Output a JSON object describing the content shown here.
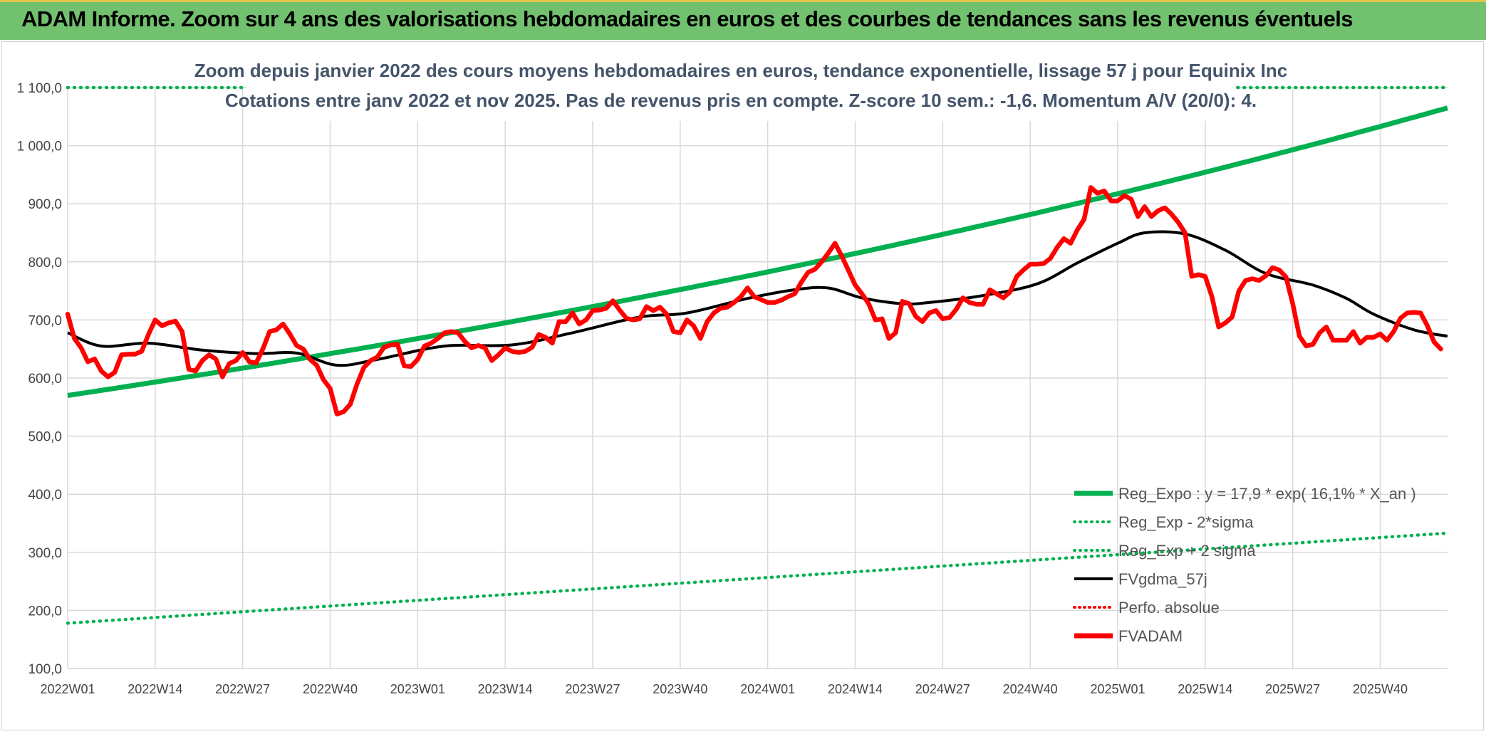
{
  "banner": {
    "title": "ADAM Informe. Zoom sur 4 ans des valorisations hebdomadaires en euros et des courbes de tendances sans les revenus éventuels"
  },
  "colors": {
    "banner_bg": "#72c16f",
    "trend": "#00b050",
    "smooth": "#000000",
    "price": "#ff0000",
    "grid": "#d9d9d9"
  },
  "chart_data": {
    "type": "line",
    "title_line1": "Zoom depuis janvier 2022 des cours moyens hebdomadaires en euros, tendance exponentielle, lissage 57 j pour Equinix Inc",
    "title_line2": "Cotations entre janv 2022 et nov 2025. Pas de revenus pris en compte. Z-score 10 sem.: -1,6. Momentum A/V (20/0): 4.",
    "ylim": [
      100,
      1100
    ],
    "ystep": 100,
    "ytick_labels": [
      "100,0",
      "200,0",
      "300,0",
      "400,0",
      "500,0",
      "600,0",
      "700,0",
      "800,0",
      "900,0",
      "1 000,0",
      "1 100,0"
    ],
    "x_categories": [
      "2022W01",
      "2022W14",
      "2022W27",
      "2022W40",
      "2023W01",
      "2023W14",
      "2023W27",
      "2023W40",
      "2024W01",
      "2024W14",
      "2024W27",
      "2024W40",
      "2025W01",
      "2025W14",
      "2025W27",
      "2025W40"
    ],
    "weeks_total": 205,
    "tick_every_weeks": 13,
    "grid": true,
    "legend_position": "bottom-right",
    "series": [
      {
        "name": "Reg_Expo : y = 17,9 * exp( 16,1% *  X_an )",
        "style": "solid-thick",
        "color": "#00b050",
        "start": 570,
        "end": 1065
      },
      {
        "name": "Reg_Exp - 2*sigma",
        "style": "dotted",
        "color": "#00b050",
        "start": 178,
        "end": 333
      },
      {
        "name": "Reg_Exp + 2 sigma",
        "style": "dotted",
        "color": "#00b050",
        "start": 1100,
        "end": 1100,
        "visible_ranges": [
          [
            0,
            35
          ],
          [
            170,
            205
          ]
        ]
      },
      {
        "name": "FVgdma_57j",
        "style": "solid",
        "color": "#000000",
        "points": [
          [
            0,
            678
          ],
          [
            5,
            655
          ],
          [
            12,
            660
          ],
          [
            20,
            648
          ],
          [
            28,
            642
          ],
          [
            34,
            643
          ],
          [
            40,
            622
          ],
          [
            46,
            632
          ],
          [
            56,
            655
          ],
          [
            66,
            657
          ],
          [
            75,
            678
          ],
          [
            85,
            705
          ],
          [
            92,
            712
          ],
          [
            101,
            737
          ],
          [
            108,
            752
          ],
          [
            113,
            755
          ],
          [
            118,
            738
          ],
          [
            124,
            728
          ],
          [
            128,
            730
          ],
          [
            136,
            742
          ],
          [
            144,
            762
          ],
          [
            150,
            798
          ],
          [
            156,
            832
          ],
          [
            160,
            850
          ],
          [
            166,
            848
          ],
          [
            172,
            820
          ],
          [
            178,
            780
          ],
          [
            185,
            760
          ],
          [
            190,
            737
          ],
          [
            194,
            710
          ],
          [
            200,
            683
          ],
          [
            205,
            672
          ]
        ]
      },
      {
        "name": "Perfo. absolue",
        "style": "dotted",
        "color": "#ff0000",
        "points": []
      },
      {
        "name": "FVADAM",
        "style": "solid-thick",
        "color": "#ff0000",
        "points": [
          [
            0,
            710
          ],
          [
            1,
            668
          ],
          [
            2,
            652
          ],
          [
            3,
            628
          ],
          [
            4,
            633
          ],
          [
            5,
            612
          ],
          [
            6,
            602
          ],
          [
            7,
            610
          ],
          [
            8,
            640
          ],
          [
            9,
            641
          ],
          [
            10,
            641
          ],
          [
            11,
            646
          ],
          [
            12,
            675
          ],
          [
            13,
            700
          ],
          [
            14,
            690
          ],
          [
            15,
            695
          ],
          [
            16,
            698
          ],
          [
            17,
            680
          ],
          [
            18,
            615
          ],
          [
            19,
            612
          ],
          [
            20,
            630
          ],
          [
            21,
            640
          ],
          [
            22,
            633
          ],
          [
            23,
            602
          ],
          [
            24,
            625
          ],
          [
            25,
            630
          ],
          [
            26,
            644
          ],
          [
            27,
            628
          ],
          [
            28,
            626
          ],
          [
            29,
            650
          ],
          [
            30,
            680
          ],
          [
            31,
            683
          ],
          [
            32,
            693
          ],
          [
            33,
            676
          ],
          [
            34,
            656
          ],
          [
            35,
            650
          ],
          [
            36,
            632
          ],
          [
            37,
            622
          ],
          [
            38,
            597
          ],
          [
            39,
            582
          ],
          [
            40,
            538
          ],
          [
            41,
            542
          ],
          [
            42,
            555
          ],
          [
            43,
            590
          ],
          [
            44,
            618
          ],
          [
            45,
            630
          ],
          [
            46,
            636
          ],
          [
            47,
            653
          ],
          [
            48,
            657
          ],
          [
            49,
            658
          ],
          [
            50,
            621
          ],
          [
            51,
            620
          ],
          [
            52,
            632
          ],
          [
            53,
            655
          ],
          [
            54,
            660
          ],
          [
            55,
            668
          ],
          [
            56,
            678
          ],
          [
            57,
            680
          ],
          [
            58,
            678
          ],
          [
            59,
            663
          ],
          [
            60,
            652
          ],
          [
            61,
            656
          ],
          [
            62,
            652
          ],
          [
            63,
            630
          ],
          [
            64,
            640
          ],
          [
            65,
            652
          ],
          [
            66,
            646
          ],
          [
            67,
            644
          ],
          [
            68,
            646
          ],
          [
            69,
            653
          ],
          [
            70,
            675
          ],
          [
            71,
            670
          ],
          [
            72,
            660
          ],
          [
            73,
            697
          ],
          [
            74,
            697
          ],
          [
            75,
            712
          ],
          [
            76,
            693
          ],
          [
            77,
            700
          ],
          [
            78,
            716
          ],
          [
            79,
            717
          ],
          [
            80,
            720
          ],
          [
            81,
            733
          ],
          [
            82,
            717
          ],
          [
            83,
            703
          ],
          [
            84,
            700
          ],
          [
            85,
            702
          ],
          [
            86,
            723
          ],
          [
            87,
            716
          ],
          [
            88,
            722
          ],
          [
            89,
            710
          ],
          [
            90,
            680
          ],
          [
            91,
            678
          ],
          [
            92,
            700
          ],
          [
            93,
            690
          ],
          [
            94,
            668
          ],
          [
            95,
            697
          ],
          [
            96,
            712
          ],
          [
            97,
            720
          ],
          [
            98,
            722
          ],
          [
            99,
            730
          ],
          [
            100,
            740
          ],
          [
            101,
            755
          ],
          [
            102,
            740
          ],
          [
            103,
            735
          ],
          [
            104,
            730
          ],
          [
            105,
            730
          ],
          [
            106,
            734
          ],
          [
            107,
            740
          ],
          [
            108,
            745
          ],
          [
            109,
            765
          ],
          [
            110,
            782
          ],
          [
            111,
            787
          ],
          [
            112,
            800
          ],
          [
            113,
            815
          ],
          [
            114,
            832
          ],
          [
            115,
            810
          ],
          [
            116,
            785
          ],
          [
            117,
            760
          ],
          [
            118,
            745
          ],
          [
            119,
            728
          ],
          [
            120,
            700
          ],
          [
            121,
            702
          ],
          [
            122,
            668
          ],
          [
            123,
            678
          ],
          [
            124,
            732
          ],
          [
            125,
            728
          ],
          [
            126,
            706
          ],
          [
            127,
            697
          ],
          [
            128,
            712
          ],
          [
            129,
            716
          ],
          [
            130,
            702
          ],
          [
            131,
            704
          ],
          [
            132,
            718
          ],
          [
            133,
            738
          ],
          [
            134,
            730
          ],
          [
            135,
            727
          ],
          [
            136,
            727
          ],
          [
            137,
            752
          ],
          [
            138,
            745
          ],
          [
            139,
            738
          ],
          [
            140,
            748
          ],
          [
            141,
            775
          ],
          [
            142,
            786
          ],
          [
            143,
            796
          ],
          [
            144,
            796
          ],
          [
            145,
            797
          ],
          [
            146,
            806
          ],
          [
            147,
            825
          ],
          [
            148,
            840
          ],
          [
            149,
            832
          ],
          [
            150,
            855
          ],
          [
            151,
            873
          ],
          [
            152,
            928
          ],
          [
            153,
            918
          ],
          [
            154,
            922
          ],
          [
            155,
            905
          ],
          [
            156,
            905
          ],
          [
            157,
            914
          ],
          [
            158,
            908
          ],
          [
            159,
            878
          ],
          [
            160,
            895
          ],
          [
            161,
            878
          ],
          [
            162,
            888
          ],
          [
            163,
            893
          ],
          [
            164,
            882
          ],
          [
            165,
            868
          ],
          [
            166,
            850
          ],
          [
            167,
            775
          ],
          [
            168,
            778
          ],
          [
            169,
            775
          ],
          [
            170,
            740
          ],
          [
            171,
            688
          ],
          [
            172,
            695
          ],
          [
            173,
            705
          ],
          [
            174,
            750
          ],
          [
            175,
            768
          ],
          [
            176,
            771
          ],
          [
            177,
            768
          ],
          [
            178,
            776
          ],
          [
            179,
            790
          ],
          [
            180,
            786
          ],
          [
            181,
            774
          ],
          [
            182,
            728
          ],
          [
            183,
            672
          ],
          [
            184,
            655
          ],
          [
            185,
            658
          ],
          [
            186,
            678
          ],
          [
            187,
            688
          ],
          [
            188,
            665
          ],
          [
            189,
            665
          ],
          [
            190,
            665
          ],
          [
            191,
            680
          ],
          [
            192,
            660
          ],
          [
            193,
            670
          ],
          [
            194,
            670
          ],
          [
            195,
            676
          ],
          [
            196,
            665
          ],
          [
            197,
            680
          ],
          [
            198,
            703
          ],
          [
            199,
            712
          ],
          [
            200,
            713
          ],
          [
            201,
            712
          ],
          [
            202,
            690
          ],
          [
            203,
            662
          ],
          [
            204,
            650
          ]
        ]
      }
    ]
  }
}
